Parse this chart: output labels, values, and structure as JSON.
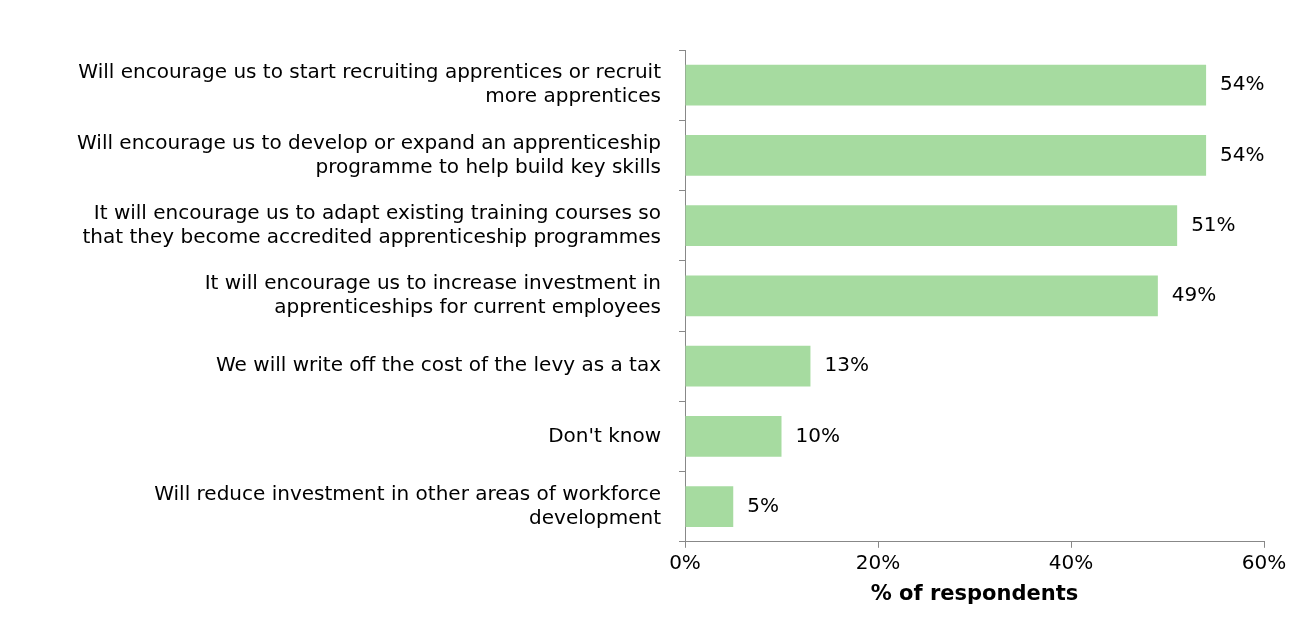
{
  "chart_data": {
    "type": "bar",
    "orientation": "horizontal",
    "xlabel": "% of respondents",
    "categories": [
      "Will encourage us to start recruiting apprentices or recruit more apprentices",
      "Will encourage us to develop or expand an apprenticeship programme to help build key skills",
      "It will encourage us to adapt existing training courses so that they become accredited apprenticeship programmes",
      "It will encourage us to increase investment in apprenticeships for current employees",
      "We will write off the cost of the levy as a tax",
      "Don't know",
      "Will reduce investment in other areas of workforce development"
    ],
    "values": [
      54,
      54,
      51,
      49,
      13,
      10,
      5
    ],
    "value_labels": [
      "54%",
      "54%",
      "51%",
      "49%",
      "13%",
      "10%",
      "5%"
    ],
    "color": "#a6dba0",
    "xlim": [
      0,
      60
    ],
    "xticks": [
      {
        "value": 0,
        "label": "0%"
      },
      {
        "value": 20,
        "label": "20%"
      },
      {
        "value": 40,
        "label": "40%"
      },
      {
        "value": 60,
        "label": "60%"
      }
    ],
    "grid": false,
    "legend": false
  }
}
